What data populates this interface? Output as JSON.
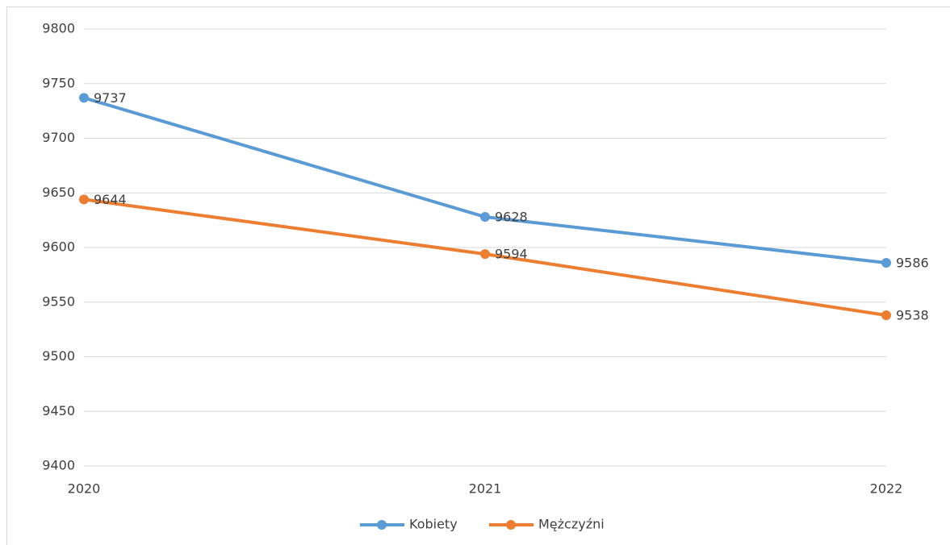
{
  "chart_data": {
    "type": "line",
    "categories": [
      "2020",
      "2021",
      "2022"
    ],
    "series": [
      {
        "name": "Kobiety",
        "color": "#5b9bd5",
        "values": [
          9737,
          9628,
          9586
        ]
      },
      {
        "name": "Mężczyźni",
        "color": "#ed7d31",
        "values": [
          9644,
          9594,
          9538
        ]
      }
    ],
    "ylim": [
      9400,
      9800
    ],
    "yticks": [
      9400,
      9450,
      9500,
      9550,
      9600,
      9650,
      9700,
      9750,
      9800
    ],
    "grid": true,
    "legend": "bottom",
    "data_labels": true
  }
}
